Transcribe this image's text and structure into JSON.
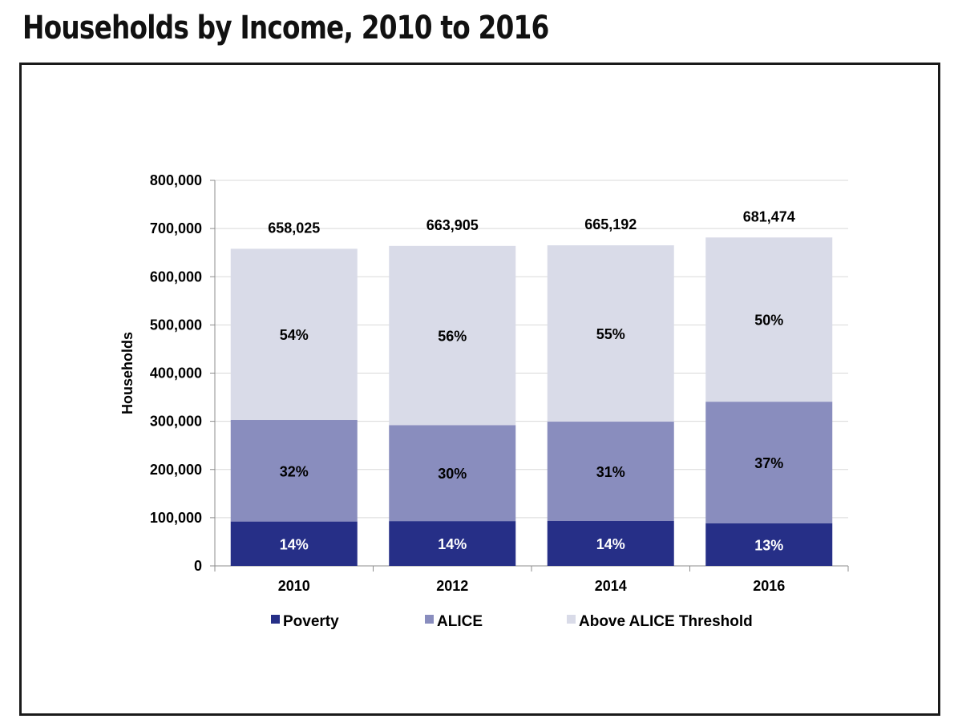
{
  "title": "Households by Income, 2010 to 2016",
  "chart_data": {
    "type": "bar",
    "stacked": true,
    "title": "Households by Income, 2010 to 2016",
    "xlabel": "",
    "ylabel": "Households",
    "ylim": [
      0,
      800000
    ],
    "yticks": [
      0,
      100000,
      200000,
      300000,
      400000,
      500000,
      600000,
      700000,
      800000
    ],
    "ytick_labels": [
      "0",
      "100,000",
      "200,000",
      "300,000",
      "400,000",
      "500,000",
      "600,000",
      "700,000",
      "800,000"
    ],
    "categories": [
      "2010",
      "2012",
      "2014",
      "2016"
    ],
    "totals": [
      658025,
      663905,
      665192,
      681474
    ],
    "total_labels": [
      "658,025",
      "663,905",
      "665,192",
      "681,474"
    ],
    "grid": true,
    "legend_position": "bottom",
    "series": [
      {
        "name": "Poverty",
        "color": "#262f87",
        "values": [
          92124,
          92947,
          93127,
          88592
        ],
        "labels": [
          "14%",
          "14%",
          "14%",
          "13%"
        ],
        "label_color": "#ffffff"
      },
      {
        "name": "ALICE",
        "color": "#898dbe",
        "values": [
          210568,
          199172,
          206210,
          252145
        ],
        "labels": [
          "32%",
          "30%",
          "31%",
          "37%"
        ],
        "label_color": "#000000"
      },
      {
        "name": "Above ALICE Threshold",
        "color": "#d9dbe8",
        "values": [
          355333,
          371786,
          365855,
          340737
        ],
        "labels": [
          "54%",
          "56%",
          "55%",
          "50%"
        ],
        "label_color": "#000000"
      }
    ]
  }
}
